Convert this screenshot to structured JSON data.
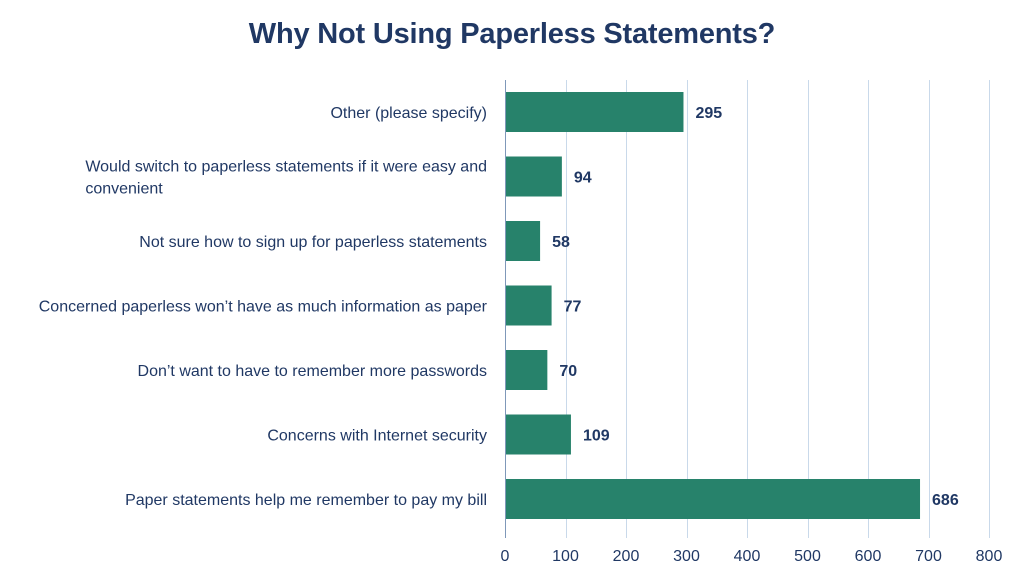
{
  "chart_data": {
    "type": "bar",
    "orientation": "horizontal",
    "title": "Why Not Using Paperless Statements?",
    "xlabel": "",
    "ylabel": "",
    "categories": [
      "Other (please specify)",
      "Would switch to paperless statements if it were easy and convenient",
      "Not sure how to sign up for paperless statements",
      "Concerned paperless won’t have as much information as paper",
      "Don’t want to have to remember more passwords",
      "Concerns with Internet security",
      "Paper statements help me remember to pay my bill"
    ],
    "category_lines": [
      [
        "Other (please specify)"
      ],
      [
        "Would switch to paperless statements if it were easy and",
        "convenient"
      ],
      [
        "Not sure how to sign up for paperless statements"
      ],
      [
        "Concerned paperless won’t have as much information as paper"
      ],
      [
        "Don’t want to have to remember more passwords"
      ],
      [
        "Concerns with Internet security"
      ],
      [
        "Paper statements help me remember to pay my bill"
      ]
    ],
    "values": [
      295,
      94,
      58,
      77,
      70,
      109,
      686
    ],
    "value_labels": [
      "295",
      "94",
      "58",
      "77",
      "70",
      "109",
      "686"
    ],
    "xlim": [
      0,
      800
    ],
    "ticks": [
      0,
      100,
      200,
      300,
      400,
      500,
      600,
      700,
      800
    ],
    "tick_labels": [
      "0",
      "100",
      "200",
      "300",
      "400",
      "500",
      "600",
      "700",
      "800"
    ],
    "grid": true,
    "legend": "none",
    "colors": {
      "bar": "#27826B",
      "text": "#203864",
      "grid": "#C9D9EA"
    }
  }
}
